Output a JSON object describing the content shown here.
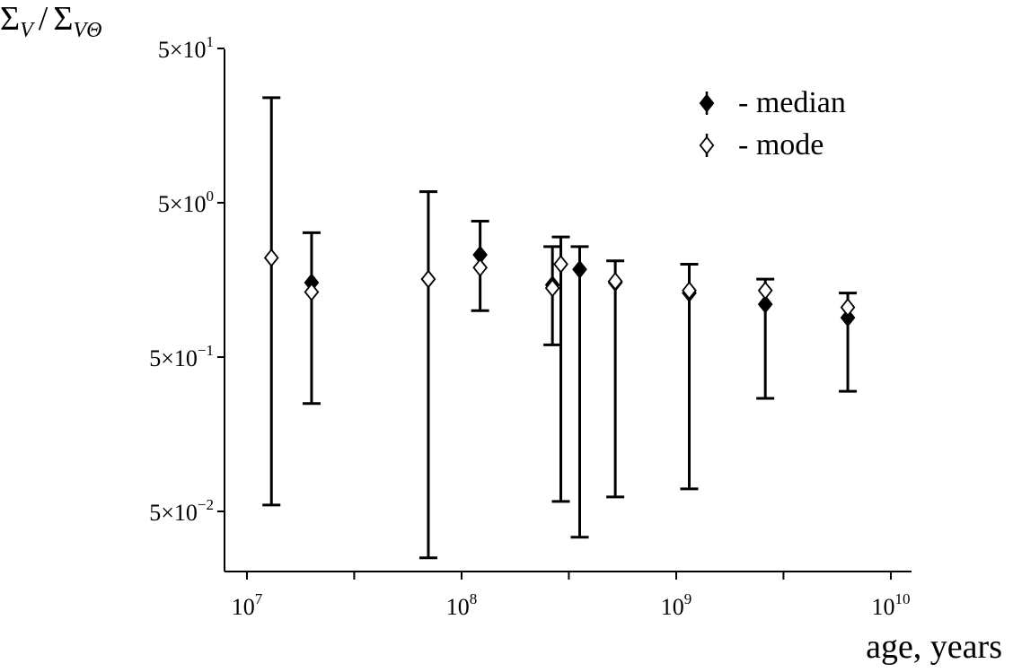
{
  "chart_data": {
    "type": "scatter",
    "x_scale": "log",
    "y_scale": "log",
    "ylabel": {
      "base": "Σ",
      "sub1": "V",
      "sep": "/",
      "base2": "Σ",
      "sub2": "VΘ"
    },
    "xlabel": "age, years",
    "xlim": [
      10000000,
      10000000000
    ],
    "ylim": [
      0.02,
      50
    ],
    "y_ticks": [
      {
        "value": 50,
        "mant": "5×10",
        "exp": "1"
      },
      {
        "value": 5,
        "mant": "5×10",
        "exp": "0"
      },
      {
        "value": 0.5,
        "mant": "5×10",
        "exp": "−1"
      },
      {
        "value": 0.05,
        "mant": "5×10",
        "exp": "−2"
      }
    ],
    "x_ticks": [
      {
        "value": 10000000,
        "mant": "10",
        "exp": "7"
      },
      {
        "value": 100000000,
        "mant": "10",
        "exp": "8"
      },
      {
        "value": 1000000000,
        "mant": "10",
        "exp": "9"
      },
      {
        "value": 10000000000,
        "mant": "10",
        "exp": "10"
      }
    ],
    "x_minor_ticks": [
      31600000,
      316000000,
      3160000000
    ],
    "legend": [
      {
        "marker": "filled-diamond",
        "dash": "-",
        "label": "median"
      },
      {
        "marker": "open-diamond",
        "dash": "-",
        "label": "mode"
      }
    ],
    "series": [
      {
        "name": "median",
        "points": [
          {
            "x": 20000000,
            "y": 1.52
          },
          {
            "x": 70000000,
            "y": 1.6
          },
          {
            "x": 122000000,
            "y": 2.3
          },
          {
            "x": 265000000,
            "y": 1.47
          },
          {
            "x": 355000000,
            "y": 1.85
          },
          {
            "x": 520000000,
            "y": 1.52
          },
          {
            "x": 1150000000,
            "y": 1.3
          },
          {
            "x": 2600000000,
            "y": 1.1
          },
          {
            "x": 6300000000,
            "y": 0.9
          }
        ]
      },
      {
        "name": "mode",
        "points": [
          {
            "x": 13000000,
            "y": 2.2
          },
          {
            "x": 20000000,
            "y": 1.32
          },
          {
            "x": 70000000,
            "y": 1.6
          },
          {
            "x": 122000000,
            "y": 1.9
          },
          {
            "x": 265000000,
            "y": 1.4
          },
          {
            "x": 290000000,
            "y": 2.0
          },
          {
            "x": 520000000,
            "y": 1.55
          },
          {
            "x": 1150000000,
            "y": 1.35
          },
          {
            "x": 2600000000,
            "y": 1.35
          },
          {
            "x": 6300000000,
            "y": 1.05
          }
        ]
      }
    ],
    "error_bars": [
      {
        "x": 13000000,
        "low": 0.055,
        "high": 24
      },
      {
        "x": 20000000,
        "low": 0.25,
        "high": 3.2
      },
      {
        "x": 70000000,
        "low": 0.025,
        "high": 5.9
      },
      {
        "x": 122000000,
        "low": 1.0,
        "high": 3.8
      },
      {
        "x": 265000000,
        "low": 0.6,
        "high": 2.6
      },
      {
        "x": 290000000,
        "low": 0.058,
        "high": 3.0
      },
      {
        "x": 355000000,
        "low": 0.034,
        "high": 2.6
      },
      {
        "x": 520000000,
        "low": 0.062,
        "high": 2.1
      },
      {
        "x": 1150000000,
        "low": 0.07,
        "high": 2.0
      },
      {
        "x": 2600000000,
        "low": 0.27,
        "high": 1.6
      },
      {
        "x": 6300000000,
        "low": 0.3,
        "high": 1.3
      }
    ],
    "grid": false
  }
}
